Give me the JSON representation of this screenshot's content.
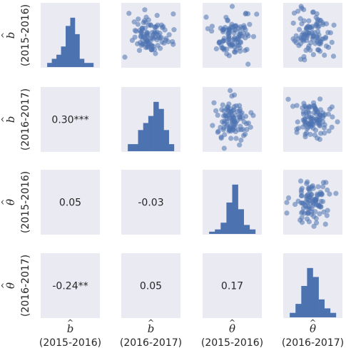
{
  "colors": {
    "panel_bg": "#eaeaf2",
    "bar": "#4c72b0",
    "text": "#262626"
  },
  "chart_data": {
    "type": "scatter",
    "layout": "pair-grid",
    "variables": [
      {
        "symbol": "b",
        "period": "(2015-2016)"
      },
      {
        "symbol": "b",
        "period": "(2016-2017)"
      },
      {
        "symbol": "θ",
        "period": "(2015-2016)"
      },
      {
        "symbol": "θ",
        "period": "(2016-2017)"
      }
    ],
    "hat": "^",
    "correlations": [
      {
        "row": 1,
        "col": 0,
        "label": "0.30***"
      },
      {
        "row": 2,
        "col": 0,
        "label": "0.05"
      },
      {
        "row": 2,
        "col": 1,
        "label": "-0.03"
      },
      {
        "row": 3,
        "col": 0,
        "label": "-0.24**"
      },
      {
        "row": 3,
        "col": 1,
        "label": "0.05"
      },
      {
        "row": 3,
        "col": 2,
        "label": "0.17"
      }
    ],
    "histograms": [
      {
        "var": 0,
        "counts": [
          1,
          2,
          3,
          5,
          10,
          12,
          8,
          2,
          1,
          1
        ]
      },
      {
        "var": 1,
        "counts": [
          1,
          1,
          3,
          4,
          5,
          7,
          6,
          3,
          1
        ]
      },
      {
        "var": 2,
        "counts": [
          1,
          2,
          5,
          14,
          22,
          11,
          4,
          2
        ]
      },
      {
        "var": 3,
        "counts": [
          1,
          3,
          7,
          11,
          9,
          4,
          2,
          1
        ]
      }
    ],
    "scatter_points": 100,
    "grid": false,
    "ticks": false
  }
}
